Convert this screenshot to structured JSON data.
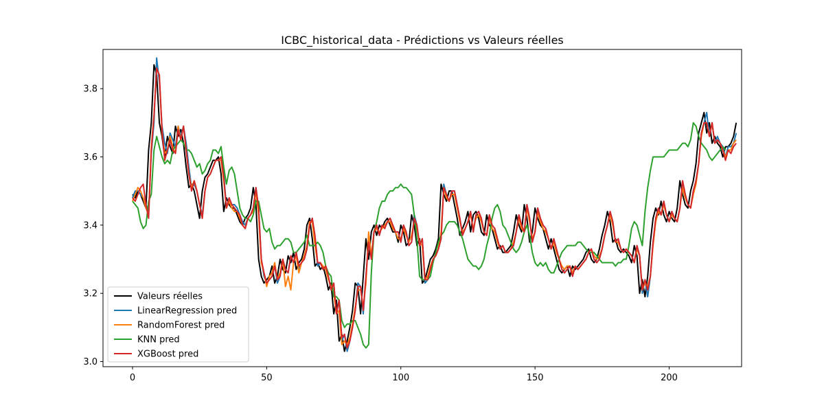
{
  "chart_data": {
    "type": "line",
    "title": "ICBC_historical_data - Prédictions vs Valeurs réelles",
    "xlabel": "",
    "ylabel": "",
    "xlim": [
      -11,
      227
    ],
    "ylim": [
      2.985,
      3.915
    ],
    "x_ticks": [
      0,
      50,
      100,
      150,
      200
    ],
    "x_tick_labels": [
      "0",
      "50",
      "100",
      "150",
      "200"
    ],
    "y_ticks": [
      3.0,
      3.2,
      3.4,
      3.6,
      3.8
    ],
    "y_tick_labels": [
      "3.0",
      "3.2",
      "3.4",
      "3.6",
      "3.8"
    ],
    "grid": false,
    "legend_position": "lower-left",
    "x_start": 0,
    "series": [
      {
        "name": "Valeurs réelles",
        "color": "#000000",
        "values": [
          3.49,
          3.48,
          3.5,
          3.49,
          3.47,
          3.45,
          3.62,
          3.7,
          3.87,
          3.84,
          3.7,
          3.66,
          3.6,
          3.66,
          3.63,
          3.61,
          3.69,
          3.66,
          3.68,
          3.64,
          3.57,
          3.51,
          3.52,
          3.5,
          3.46,
          3.42,
          3.5,
          3.54,
          3.55,
          3.57,
          3.59,
          3.59,
          3.6,
          3.55,
          3.44,
          3.48,
          3.46,
          3.45,
          3.45,
          3.43,
          3.41,
          3.4,
          3.42,
          3.43,
          3.45,
          3.51,
          3.46,
          3.3,
          3.25,
          3.23,
          3.24,
          3.25,
          3.28,
          3.23,
          3.25,
          3.3,
          3.27,
          3.26,
          3.31,
          3.29,
          3.32,
          3.27,
          3.29,
          3.3,
          3.33,
          3.4,
          3.42,
          3.36,
          3.28,
          3.29,
          3.27,
          3.28,
          3.25,
          3.21,
          3.23,
          3.14,
          3.18,
          3.06,
          3.08,
          3.03,
          3.06,
          3.1,
          3.15,
          3.23,
          3.22,
          3.14,
          3.25,
          3.36,
          3.3,
          3.38,
          3.4,
          3.37,
          3.4,
          3.39,
          3.41,
          3.42,
          3.4,
          3.38,
          3.38,
          3.35,
          3.4,
          3.38,
          3.34,
          3.35,
          3.43,
          3.4,
          3.34,
          3.36,
          3.23,
          3.24,
          3.27,
          3.3,
          3.31,
          3.33,
          3.36,
          3.52,
          3.49,
          3.47,
          3.5,
          3.5,
          3.46,
          3.42,
          3.37,
          3.39,
          3.41,
          3.44,
          3.38,
          3.43,
          3.44,
          3.42,
          3.38,
          3.37,
          3.43,
          3.4,
          3.39,
          3.36,
          3.33,
          3.34,
          3.32,
          3.32,
          3.33,
          3.34,
          3.38,
          3.43,
          3.4,
          3.38,
          3.46,
          3.42,
          3.35,
          3.38,
          3.45,
          3.42,
          3.4,
          3.39,
          3.36,
          3.33,
          3.36,
          3.33,
          3.3,
          3.27,
          3.26,
          3.27,
          3.28,
          3.25,
          3.28,
          3.27,
          3.28,
          3.29,
          3.3,
          3.32,
          3.33,
          3.3,
          3.29,
          3.3,
          3.33,
          3.37,
          3.4,
          3.44,
          3.41,
          3.35,
          3.36,
          3.33,
          3.32,
          3.33,
          3.32,
          3.31,
          3.29,
          3.34,
          3.31,
          3.2,
          3.24,
          3.19,
          3.25,
          3.35,
          3.42,
          3.45,
          3.43,
          3.47,
          3.43,
          3.41,
          3.44,
          3.42,
          3.41,
          3.45,
          3.53,
          3.49,
          3.46,
          3.45,
          3.5,
          3.53,
          3.58,
          3.67,
          3.7,
          3.73,
          3.67,
          3.7,
          3.64,
          3.66,
          3.64,
          3.63,
          3.6,
          3.63,
          3.63,
          3.64,
          3.66,
          3.7
        ]
      },
      {
        "name": "LinearRegression pred",
        "color": "#1f77b4",
        "values": [
          3.48,
          3.5,
          3.5,
          3.49,
          3.48,
          3.46,
          3.44,
          3.61,
          3.7,
          3.89,
          3.82,
          3.69,
          3.64,
          3.61,
          3.67,
          3.65,
          3.63,
          3.69,
          3.66,
          3.69,
          3.64,
          3.57,
          3.51,
          3.52,
          3.5,
          3.46,
          3.43,
          3.5,
          3.54,
          3.55,
          3.57,
          3.59,
          3.59,
          3.6,
          3.55,
          3.45,
          3.48,
          3.46,
          3.46,
          3.45,
          3.43,
          3.41,
          3.4,
          3.42,
          3.43,
          3.45,
          3.51,
          3.45,
          3.3,
          3.25,
          3.23,
          3.24,
          3.25,
          3.28,
          3.23,
          3.25,
          3.3,
          3.27,
          3.26,
          3.31,
          3.29,
          3.32,
          3.27,
          3.29,
          3.3,
          3.33,
          3.4,
          3.42,
          3.36,
          3.28,
          3.29,
          3.27,
          3.28,
          3.25,
          3.21,
          3.23,
          3.14,
          3.18,
          3.06,
          3.08,
          3.03,
          3.06,
          3.1,
          3.15,
          3.23,
          3.22,
          3.14,
          3.25,
          3.36,
          3.3,
          3.38,
          3.4,
          3.37,
          3.4,
          3.39,
          3.41,
          3.42,
          3.4,
          3.38,
          3.38,
          3.35,
          3.4,
          3.38,
          3.34,
          3.35,
          3.43,
          3.4,
          3.34,
          3.36,
          3.23,
          3.24,
          3.27,
          3.3,
          3.31,
          3.33,
          3.36,
          3.52,
          3.49,
          3.47,
          3.5,
          3.5,
          3.46,
          3.42,
          3.37,
          3.39,
          3.41,
          3.44,
          3.38,
          3.43,
          3.44,
          3.42,
          3.38,
          3.37,
          3.43,
          3.4,
          3.39,
          3.36,
          3.33,
          3.34,
          3.32,
          3.32,
          3.33,
          3.34,
          3.38,
          3.43,
          3.4,
          3.38,
          3.46,
          3.42,
          3.35,
          3.38,
          3.45,
          3.42,
          3.4,
          3.39,
          3.36,
          3.33,
          3.36,
          3.33,
          3.3,
          3.27,
          3.26,
          3.27,
          3.28,
          3.25,
          3.28,
          3.27,
          3.28,
          3.29,
          3.3,
          3.32,
          3.33,
          3.3,
          3.29,
          3.3,
          3.33,
          3.37,
          3.4,
          3.44,
          3.41,
          3.35,
          3.36,
          3.33,
          3.32,
          3.33,
          3.32,
          3.31,
          3.29,
          3.34,
          3.31,
          3.2,
          3.24,
          3.19,
          3.25,
          3.35,
          3.42,
          3.45,
          3.43,
          3.47,
          3.43,
          3.41,
          3.44,
          3.42,
          3.41,
          3.45,
          3.53,
          3.49,
          3.46,
          3.45,
          3.5,
          3.53,
          3.58,
          3.67,
          3.7,
          3.73,
          3.66,
          3.7,
          3.64,
          3.66,
          3.64,
          3.63,
          3.6,
          3.63,
          3.63,
          3.64,
          3.67
        ]
      },
      {
        "name": "RandomForest pred",
        "color": "#ff7f0e",
        "values": [
          3.47,
          3.49,
          3.51,
          3.5,
          3.48,
          3.45,
          3.43,
          3.63,
          3.72,
          3.86,
          3.84,
          3.67,
          3.61,
          3.62,
          3.66,
          3.63,
          3.61,
          3.69,
          3.65,
          3.69,
          3.62,
          3.55,
          3.51,
          3.53,
          3.5,
          3.46,
          3.42,
          3.5,
          3.54,
          3.55,
          3.57,
          3.59,
          3.59,
          3.59,
          3.53,
          3.45,
          3.47,
          3.45,
          3.44,
          3.44,
          3.42,
          3.4,
          3.39,
          3.42,
          3.43,
          3.44,
          3.5,
          3.43,
          3.29,
          3.26,
          3.22,
          3.25,
          3.26,
          3.29,
          3.24,
          3.26,
          3.3,
          3.22,
          3.25,
          3.21,
          3.29,
          3.31,
          3.26,
          3.29,
          3.31,
          3.34,
          3.41,
          3.41,
          3.34,
          3.29,
          3.29,
          3.28,
          3.27,
          3.24,
          3.22,
          3.2,
          3.14,
          3.15,
          3.05,
          3.06,
          3.05,
          3.07,
          3.11,
          3.16,
          3.21,
          3.21,
          3.16,
          3.23,
          3.38,
          3.31,
          3.38,
          3.39,
          3.38,
          3.39,
          3.4,
          3.41,
          3.41,
          3.39,
          3.38,
          3.36,
          3.36,
          3.39,
          3.37,
          3.35,
          3.37,
          3.41,
          3.39,
          3.35,
          3.34,
          3.24,
          3.25,
          3.28,
          3.3,
          3.31,
          3.33,
          3.38,
          3.51,
          3.48,
          3.47,
          3.49,
          3.49,
          3.45,
          3.41,
          3.38,
          3.39,
          3.41,
          3.43,
          3.39,
          3.42,
          3.43,
          3.41,
          3.38,
          3.37,
          3.42,
          3.39,
          3.38,
          3.35,
          3.33,
          3.34,
          3.32,
          3.32,
          3.33,
          3.35,
          3.38,
          3.42,
          3.39,
          3.38,
          3.45,
          3.41,
          3.36,
          3.38,
          3.44,
          3.41,
          3.39,
          3.38,
          3.36,
          3.33,
          3.35,
          3.32,
          3.3,
          3.28,
          3.27,
          3.28,
          3.28,
          3.26,
          3.28,
          3.27,
          3.28,
          3.29,
          3.3,
          3.32,
          3.33,
          3.31,
          3.3,
          3.31,
          3.33,
          3.37,
          3.4,
          3.43,
          3.4,
          3.35,
          3.35,
          3.33,
          3.32,
          3.33,
          3.32,
          3.31,
          3.29,
          3.33,
          3.31,
          3.21,
          3.23,
          3.22,
          3.25,
          3.34,
          3.41,
          3.44,
          3.43,
          3.46,
          3.43,
          3.41,
          3.43,
          3.42,
          3.41,
          3.45,
          3.51,
          3.48,
          3.46,
          3.45,
          3.49,
          3.52,
          3.58,
          3.66,
          3.7,
          3.7,
          3.66,
          3.7,
          3.64,
          3.65,
          3.64,
          3.62,
          3.6,
          3.62,
          3.62,
          3.64,
          3.65
        ]
      },
      {
        "name": "KNN pred",
        "color": "#2ca02c",
        "values": [
          3.47,
          3.46,
          3.45,
          3.41,
          3.39,
          3.4,
          3.47,
          3.49,
          3.62,
          3.66,
          3.63,
          3.6,
          3.58,
          3.59,
          3.58,
          3.62,
          3.63,
          3.64,
          3.65,
          3.64,
          3.62,
          3.62,
          3.61,
          3.59,
          3.57,
          3.58,
          3.55,
          3.56,
          3.58,
          3.59,
          3.62,
          3.62,
          3.61,
          3.63,
          3.57,
          3.52,
          3.56,
          3.57,
          3.55,
          3.5,
          3.45,
          3.43,
          3.42,
          3.42,
          3.41,
          3.43,
          3.47,
          3.47,
          3.43,
          3.39,
          3.38,
          3.39,
          3.35,
          3.33,
          3.34,
          3.34,
          3.35,
          3.36,
          3.36,
          3.35,
          3.32,
          3.32,
          3.33,
          3.34,
          3.35,
          3.37,
          3.34,
          3.34,
          3.34,
          3.35,
          3.34,
          3.32,
          3.28,
          3.26,
          3.25,
          3.19,
          3.19,
          3.18,
          3.12,
          3.1,
          3.11,
          3.11,
          3.12,
          3.12,
          3.1,
          3.08,
          3.05,
          3.04,
          3.05,
          3.26,
          3.38,
          3.41,
          3.45,
          3.47,
          3.47,
          3.49,
          3.5,
          3.5,
          3.51,
          3.51,
          3.52,
          3.51,
          3.51,
          3.5,
          3.49,
          3.43,
          3.36,
          3.25,
          3.24,
          3.24,
          3.24,
          3.25,
          3.29,
          3.32,
          3.35,
          3.37,
          3.38,
          3.4,
          3.41,
          3.41,
          3.41,
          3.4,
          3.38,
          3.36,
          3.33,
          3.3,
          3.29,
          3.28,
          3.28,
          3.27,
          3.28,
          3.3,
          3.34,
          3.37,
          3.42,
          3.45,
          3.46,
          3.44,
          3.4,
          3.39,
          3.37,
          3.35,
          3.33,
          3.32,
          3.33,
          3.35,
          3.38,
          3.4,
          3.37,
          3.32,
          3.29,
          3.28,
          3.29,
          3.28,
          3.29,
          3.27,
          3.26,
          3.26,
          3.28,
          3.3,
          3.32,
          3.33,
          3.34,
          3.34,
          3.34,
          3.34,
          3.35,
          3.35,
          3.34,
          3.33,
          3.32,
          3.32,
          3.32,
          3.31,
          3.3,
          3.29,
          3.29,
          3.29,
          3.29,
          3.29,
          3.28,
          3.29,
          3.29,
          3.3,
          3.3,
          3.34,
          3.39,
          3.41,
          3.4,
          3.37,
          3.34,
          3.44,
          3.51,
          3.56,
          3.6,
          3.6,
          3.6,
          3.6,
          3.6,
          3.61,
          3.62,
          3.62,
          3.62,
          3.62,
          3.63,
          3.64,
          3.64,
          3.63,
          3.65,
          3.7,
          3.69,
          3.66,
          3.64,
          3.63,
          3.62,
          3.6,
          3.59,
          3.6,
          3.61,
          3.62,
          3.63,
          3.62
        ]
      },
      {
        "name": "XGBoost pred",
        "color": "#d62728",
        "values": [
          3.48,
          3.47,
          3.49,
          3.51,
          3.52,
          3.46,
          3.42,
          3.62,
          3.72,
          3.86,
          3.84,
          3.68,
          3.59,
          3.62,
          3.65,
          3.62,
          3.61,
          3.68,
          3.65,
          3.69,
          3.62,
          3.55,
          3.5,
          3.53,
          3.5,
          3.46,
          3.42,
          3.5,
          3.54,
          3.55,
          3.57,
          3.59,
          3.59,
          3.6,
          3.54,
          3.45,
          3.48,
          3.46,
          3.45,
          3.44,
          3.43,
          3.4,
          3.39,
          3.42,
          3.43,
          3.45,
          3.51,
          3.45,
          3.3,
          3.26,
          3.23,
          3.24,
          3.25,
          3.28,
          3.24,
          3.25,
          3.3,
          3.27,
          3.26,
          3.31,
          3.29,
          3.32,
          3.28,
          3.29,
          3.3,
          3.33,
          3.4,
          3.42,
          3.37,
          3.29,
          3.29,
          3.27,
          3.28,
          3.25,
          3.21,
          3.23,
          3.14,
          3.18,
          3.07,
          3.08,
          3.04,
          3.06,
          3.1,
          3.15,
          3.22,
          3.22,
          3.15,
          3.25,
          3.35,
          3.3,
          3.38,
          3.4,
          3.37,
          3.4,
          3.39,
          3.41,
          3.42,
          3.4,
          3.38,
          3.38,
          3.35,
          3.4,
          3.38,
          3.34,
          3.35,
          3.42,
          3.4,
          3.34,
          3.36,
          3.24,
          3.24,
          3.27,
          3.3,
          3.31,
          3.33,
          3.36,
          3.51,
          3.49,
          3.47,
          3.5,
          3.5,
          3.46,
          3.42,
          3.37,
          3.39,
          3.41,
          3.44,
          3.38,
          3.43,
          3.44,
          3.42,
          3.38,
          3.37,
          3.43,
          3.4,
          3.39,
          3.36,
          3.33,
          3.34,
          3.32,
          3.32,
          3.33,
          3.34,
          3.38,
          3.43,
          3.4,
          3.38,
          3.46,
          3.42,
          3.35,
          3.38,
          3.45,
          3.42,
          3.4,
          3.39,
          3.36,
          3.33,
          3.36,
          3.33,
          3.3,
          3.27,
          3.26,
          3.27,
          3.28,
          3.25,
          3.28,
          3.27,
          3.28,
          3.29,
          3.3,
          3.32,
          3.33,
          3.3,
          3.29,
          3.3,
          3.33,
          3.37,
          3.4,
          3.44,
          3.41,
          3.35,
          3.36,
          3.33,
          3.32,
          3.33,
          3.32,
          3.31,
          3.29,
          3.34,
          3.31,
          3.21,
          3.24,
          3.21,
          3.25,
          3.35,
          3.42,
          3.45,
          3.43,
          3.47,
          3.43,
          3.41,
          3.44,
          3.42,
          3.41,
          3.45,
          3.53,
          3.49,
          3.46,
          3.45,
          3.5,
          3.53,
          3.58,
          3.67,
          3.7,
          3.7,
          3.66,
          3.7,
          3.64,
          3.65,
          3.64,
          3.62,
          3.59,
          3.62,
          3.61,
          3.63,
          3.64
        ]
      }
    ]
  }
}
